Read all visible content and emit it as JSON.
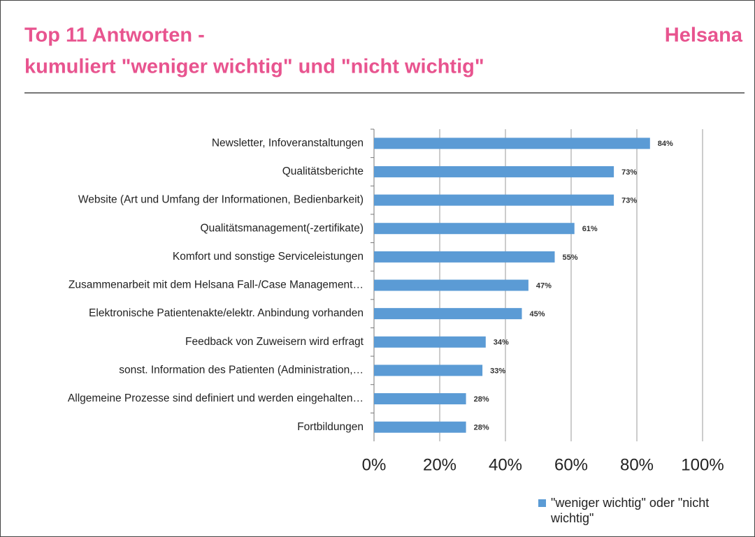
{
  "brand": "Helsana",
  "chart_data": {
    "type": "bar",
    "orientation": "horizontal",
    "title": "Top 11 Antworten -",
    "subtitle": "kumuliert \"weniger wichtig\" und \"nicht wichtig\"",
    "categories": [
      "Newsletter, Infoveranstaltungen",
      "Qualitätsberichte",
      "Website (Art und Umfang der Informationen, Bedienbarkeit)",
      "Qualitätsmanagement(-zertifikate)",
      "Komfort und sonstige Serviceleistungen",
      "Zusammenarbeit mit dem Helsana Fall-/Case Management…",
      "Elektronische Patientenakte/elektr. Anbindung vorhanden",
      "Feedback von Zuweisern wird erfragt",
      "sonst. Information des Patienten (Administration,…",
      "Allgemeine Prozesse sind definiert und werden eingehalten…",
      "Fortbildungen"
    ],
    "series": [
      {
        "name": "\"weniger wichtig\" oder \"nicht wichtig\"",
        "color": "#5b9bd5",
        "values": [
          84,
          73,
          73,
          61,
          55,
          47,
          45,
          34,
          33,
          28,
          28
        ],
        "value_labels": [
          "84%",
          "73%",
          "73%",
          "61%",
          "55%",
          "47%",
          "45%",
          "34%",
          "33%",
          "28%",
          "28%"
        ]
      }
    ],
    "xlim": [
      0,
      100
    ],
    "xticks": [
      {
        "value": 0,
        "label": "0%"
      },
      {
        "value": 20,
        "label": "20%"
      },
      {
        "value": 40,
        "label": "40%"
      },
      {
        "value": 60,
        "label": "60%"
      },
      {
        "value": 80,
        "label": "80%"
      },
      {
        "value": 100,
        "label": "100%"
      }
    ],
    "grid": true,
    "legend": "bottom-right"
  }
}
